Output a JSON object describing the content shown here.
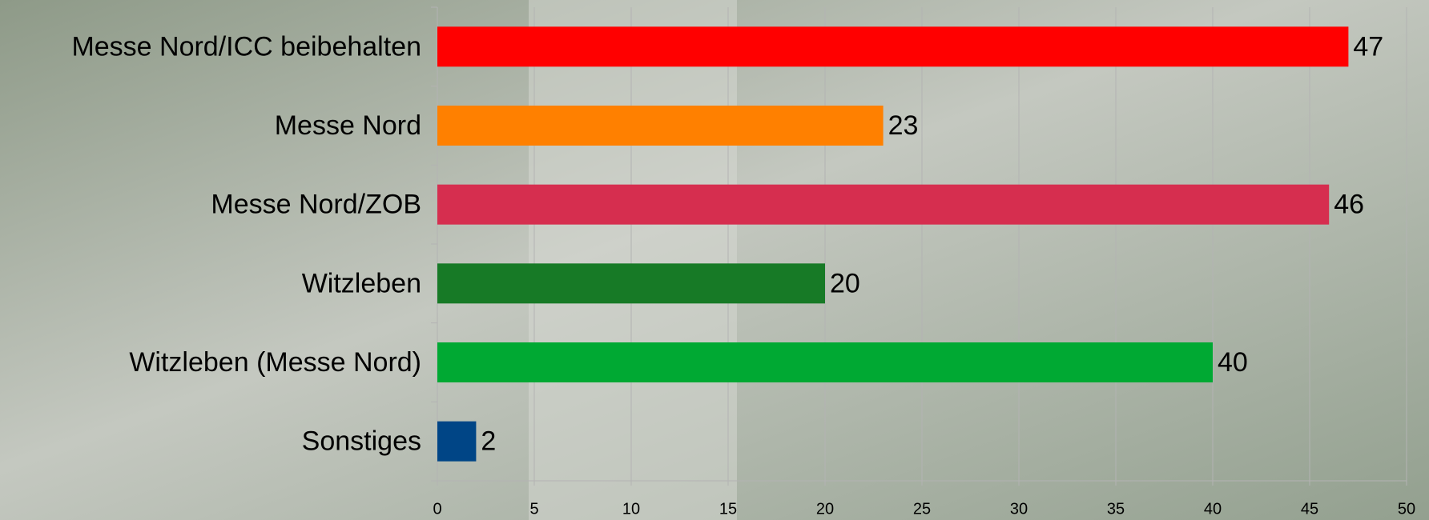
{
  "chart_data": {
    "type": "bar",
    "orientation": "horizontal",
    "categories": [
      "Messe Nord/ICC beibehalten",
      "Messe Nord",
      "Messe Nord/ZOB",
      "Witzleben",
      "Witzleben (Messe Nord)",
      "Sonstiges"
    ],
    "values": [
      47,
      23,
      46,
      20,
      40,
      2
    ],
    "colors": [
      "#ff0000",
      "#ff8000",
      "#d62e4f",
      "#177a26",
      "#00a933",
      "#004586"
    ],
    "xlim": [
      0,
      50
    ],
    "xticks": [
      0,
      5,
      10,
      15,
      20,
      25,
      30,
      35,
      40,
      45,
      50
    ],
    "grid": true
  }
}
